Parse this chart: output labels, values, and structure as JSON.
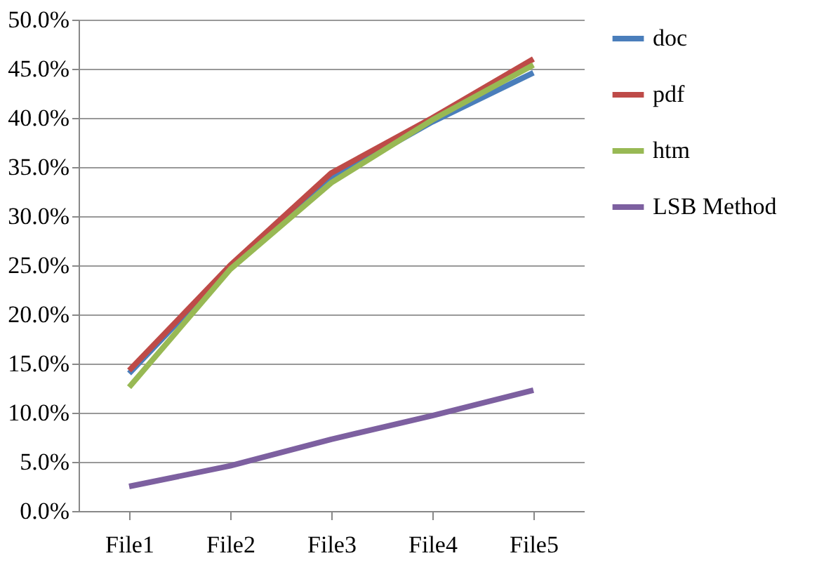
{
  "chart_data": {
    "type": "line",
    "categories": [
      "File1",
      "File2",
      "File3",
      "File4",
      "File5"
    ],
    "series": [
      {
        "name": "doc",
        "color": "#4a7ebb",
        "values": [
          14.0,
          24.8,
          33.8,
          39.6,
          44.6
        ]
      },
      {
        "name": "pdf",
        "color": "#be4b48",
        "values": [
          14.3,
          25.0,
          34.4,
          40.0,
          46.0
        ]
      },
      {
        "name": "htm",
        "color": "#98b954",
        "values": [
          12.6,
          24.6,
          33.4,
          39.8,
          45.4
        ]
      },
      {
        "name": "LSB Method",
        "color": "#7d60a0",
        "values": [
          2.5,
          4.6,
          7.3,
          9.7,
          12.3
        ]
      }
    ],
    "ylim": [
      0,
      50
    ],
    "yticks": [
      {
        "value": 0,
        "label": "0.0%"
      },
      {
        "value": 5,
        "label": "5.0%"
      },
      {
        "value": 10,
        "label": "10.0%"
      },
      {
        "value": 15,
        "label": "15.0%"
      },
      {
        "value": 20,
        "label": "20.0%"
      },
      {
        "value": 25,
        "label": "25.0%"
      },
      {
        "value": 30,
        "label": "30.0%"
      },
      {
        "value": 35,
        "label": "35.0%"
      },
      {
        "value": 40,
        "label": "40.0%"
      },
      {
        "value": 45,
        "label": "45.0%"
      },
      {
        "value": 50,
        "label": "50.0%"
      }
    ],
    "grid": "y",
    "legend": "right",
    "marker": "none",
    "line_style": "solid"
  }
}
